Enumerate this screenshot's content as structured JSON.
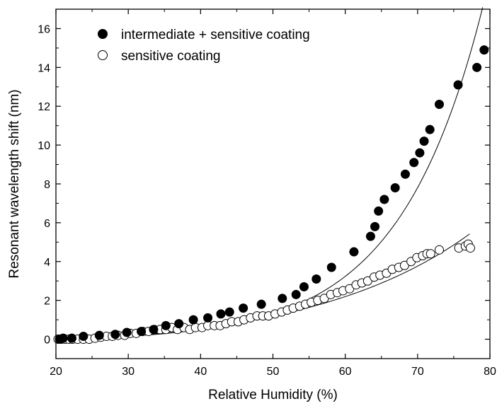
{
  "chart_data": {
    "type": "scatter",
    "xlabel": "Relative Humidity (%)",
    "ylabel": "Resonant wavelength shift (nm)",
    "xlim": [
      20,
      80
    ],
    "ylim": [
      -1,
      17
    ],
    "x_ticks": [
      20,
      30,
      40,
      50,
      60,
      70,
      80
    ],
    "y_ticks": [
      0,
      2,
      4,
      6,
      8,
      10,
      12,
      14,
      16
    ],
    "x_tick_labels": [
      "20",
      "30",
      "40",
      "50",
      "60",
      "70",
      "80"
    ],
    "y_tick_labels": [
      "0",
      "2",
      "4",
      "6",
      "8",
      "10",
      "12",
      "14",
      "16"
    ],
    "grid": false,
    "legend_position": "top-left",
    "series": [
      {
        "name": "intermediate + sensitive coating",
        "marker": "filled-circle",
        "color": "#000000",
        "x": [
          20.5,
          21.0,
          22.2,
          23.8,
          26.0,
          28.2,
          29.8,
          31.8,
          33.5,
          35.2,
          37.0,
          39.0,
          41.0,
          42.8,
          44.0,
          45.9,
          48.4,
          51.3,
          53.2,
          54.3,
          56.0,
          58.1,
          61.2,
          63.5,
          64.1,
          64.6,
          65.4,
          66.9,
          68.3,
          69.5,
          70.3,
          70.9,
          71.7,
          73.0,
          75.6,
          78.2,
          79.2
        ],
        "y": [
          0.0,
          0.05,
          0.05,
          0.15,
          0.2,
          0.25,
          0.35,
          0.4,
          0.5,
          0.7,
          0.8,
          1.0,
          1.1,
          1.3,
          1.4,
          1.6,
          1.8,
          2.1,
          2.3,
          2.7,
          3.1,
          3.7,
          4.5,
          5.3,
          5.8,
          6.6,
          7.2,
          7.8,
          8.5,
          9.1,
          9.6,
          10.2,
          10.8,
          12.1,
          13.1,
          14.0,
          14.9
        ]
      },
      {
        "name": "sensitive coating",
        "marker": "open-circle",
        "color": "#000000",
        "x": [
          20.3,
          20.8,
          21.3,
          21.8,
          22.3,
          23.0,
          23.8,
          24.6,
          25.4,
          26.2,
          27.0,
          27.8,
          28.6,
          29.5,
          30.3,
          31.1,
          32.0,
          32.8,
          33.6,
          34.4,
          35.2,
          36.0,
          36.8,
          37.7,
          38.5,
          39.3,
          40.2,
          41.0,
          41.9,
          42.7,
          43.5,
          44.3,
          45.2,
          46.0,
          46.9,
          47.8,
          48.6,
          49.4,
          50.3,
          51.2,
          52.0,
          52.8,
          53.7,
          54.5,
          55.3,
          56.2,
          57.1,
          58.0,
          58.9,
          59.7,
          60.6,
          61.5,
          62.3,
          63.1,
          64.0,
          64.8,
          65.7,
          66.5,
          67.4,
          68.2,
          69.1,
          69.9,
          70.7,
          71.3,
          71.8,
          73.0,
          75.7,
          76.6,
          77.0,
          77.3
        ],
        "y": [
          0.0,
          0.0,
          0.0,
          0.0,
          0.0,
          0.0,
          0.0,
          0.0,
          0.05,
          0.1,
          0.15,
          0.15,
          0.2,
          0.2,
          0.3,
          0.3,
          0.4,
          0.4,
          0.5,
          0.5,
          0.5,
          0.6,
          0.5,
          0.6,
          0.5,
          0.6,
          0.6,
          0.7,
          0.7,
          0.7,
          0.8,
          0.9,
          0.9,
          1.0,
          1.1,
          1.2,
          1.2,
          1.2,
          1.3,
          1.4,
          1.5,
          1.6,
          1.7,
          1.8,
          1.9,
          2.0,
          2.1,
          2.3,
          2.4,
          2.5,
          2.6,
          2.8,
          2.9,
          3.0,
          3.2,
          3.3,
          3.4,
          3.6,
          3.7,
          3.8,
          4.0,
          4.2,
          4.3,
          4.4,
          4.4,
          4.6,
          4.7,
          4.8,
          4.9,
          4.7
        ]
      }
    ],
    "fit_curves": [
      {
        "series": "intermediate + sensitive coating",
        "x_range": [
          20,
          79
        ],
        "A": 0.1057,
        "B": 0.0863,
        "C": 20,
        "D": -0.1
      },
      {
        "series": "sensitive coating",
        "x_range": [
          20,
          77.2
        ],
        "A": 0.45,
        "B": 0.0452,
        "C": 20,
        "D": -0.55
      }
    ]
  }
}
